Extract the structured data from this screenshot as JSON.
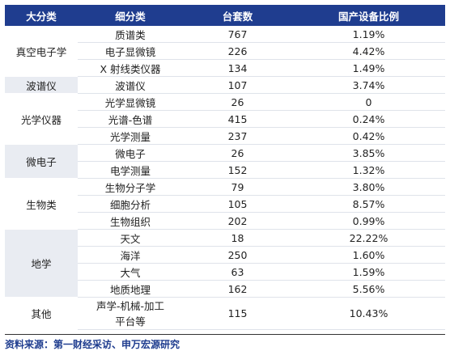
{
  "headers": [
    "大分类",
    "细分类",
    "台套数",
    "国产设备比例"
  ],
  "groups": [
    {
      "name": "真空电子学",
      "rows": [
        {
          "sub": "质谱类",
          "count": "767",
          "ratio": "1.19%"
        },
        {
          "sub": "电子显微镜",
          "count": "226",
          "ratio": "4.42%"
        },
        {
          "sub": "X 射线类仪器",
          "count": "134",
          "ratio": "1.49%"
        }
      ]
    },
    {
      "name": "波谱仪",
      "rows": [
        {
          "sub": "波谱仪",
          "count": "107",
          "ratio": "3.74%"
        }
      ]
    },
    {
      "name": "光学仪器",
      "rows": [
        {
          "sub": "光学显微镜",
          "count": "26",
          "ratio": "0"
        },
        {
          "sub": "光谱-色谱",
          "count": "415",
          "ratio": "0.24%"
        },
        {
          "sub": "光学测量",
          "count": "237",
          "ratio": "0.42%"
        }
      ]
    },
    {
      "name": "微电子",
      "rows": [
        {
          "sub": "微电子",
          "count": "26",
          "ratio": "3.85%"
        },
        {
          "sub": "电学测量",
          "count": "152",
          "ratio": "1.32%"
        }
      ]
    },
    {
      "name": "生物类",
      "rows": [
        {
          "sub": "生物分子学",
          "count": "79",
          "ratio": "3.80%"
        },
        {
          "sub": "细胞分析",
          "count": "105",
          "ratio": "8.57%"
        },
        {
          "sub": "生物组织",
          "count": "202",
          "ratio": "0.99%"
        }
      ]
    },
    {
      "name": "地学",
      "rows": [
        {
          "sub": "天文",
          "count": "18",
          "ratio": "22.22%"
        },
        {
          "sub": "海洋",
          "count": "250",
          "ratio": "1.60%"
        },
        {
          "sub": "大气",
          "count": "63",
          "ratio": "1.59%"
        },
        {
          "sub": "地质地理",
          "count": "162",
          "ratio": "5.56%"
        }
      ]
    },
    {
      "name": "其他",
      "rows": [
        {
          "sub_lines": [
            "声学-机械-加工",
            "平台等"
          ],
          "count": "115",
          "ratio": "10.43%"
        }
      ]
    }
  ],
  "source": "资料来源：第一财经采访、申万宏源研究",
  "colors": {
    "header_bg": "#1f3d8f",
    "group_alt_bg": "#e9ecf2",
    "source_text": "#1f3d8f"
  }
}
